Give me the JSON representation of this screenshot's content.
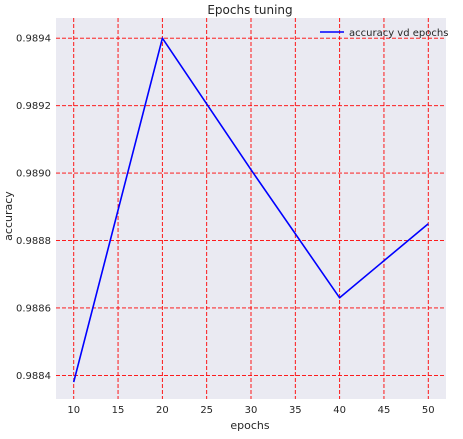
{
  "chart_data": {
    "type": "line",
    "title": "Epochs tuning",
    "xlabel": "epochs",
    "ylabel": "accuracy",
    "x": [
      10,
      20,
      30,
      40,
      50
    ],
    "series": [
      {
        "name": "accuracy vd epochs",
        "values": [
          0.98838,
          0.9894,
          0.98901,
          0.98863,
          0.98885
        ],
        "color": "#0000ff"
      }
    ],
    "xlim": [
      8,
      52
    ],
    "ylim": [
      0.98833,
      0.98946
    ],
    "xticks": [
      10,
      15,
      20,
      25,
      30,
      35,
      40,
      45,
      50
    ],
    "xtick_labels": [
      "10",
      "15",
      "20",
      "25",
      "30",
      "35",
      "40",
      "45",
      "50"
    ],
    "yticks": [
      0.9884,
      0.9886,
      0.9888,
      0.989,
      0.9892,
      0.9894
    ],
    "ytick_labels": [
      "0.9884",
      "0.9886",
      "0.9888",
      "0.9890",
      "0.9892",
      "0.9894"
    ],
    "grid": true,
    "grid_color": "#ff0000",
    "background_color": "#eaeaf2",
    "legend_position": "top-right"
  }
}
